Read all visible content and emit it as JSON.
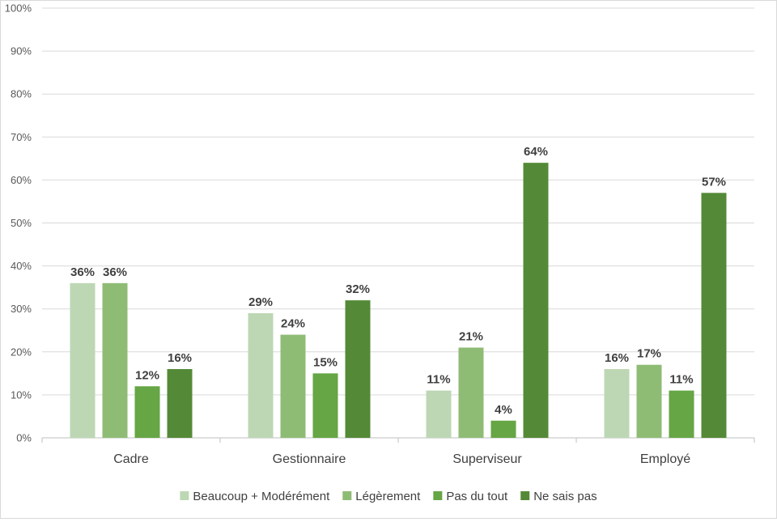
{
  "chart_data": {
    "type": "bar",
    "categories": [
      "Cadre",
      "Gestionnaire",
      "Superviseur",
      "Employé"
    ],
    "series": [
      {
        "name": "Beaucoup + Modérément",
        "color": "#bdd7b4",
        "values": [
          36,
          29,
          11,
          16
        ]
      },
      {
        "name": "Légèrement",
        "color": "#8fbc75",
        "values": [
          36,
          24,
          21,
          17
        ]
      },
      {
        "name": "Pas du tout",
        "color": "#66a645",
        "values": [
          12,
          15,
          4,
          11
        ]
      },
      {
        "name": "Ne sais pas",
        "color": "#548a37",
        "values": [
          16,
          32,
          64,
          57
        ]
      }
    ],
    "ylim": [
      0,
      100
    ],
    "yticks": [
      "0%",
      "10%",
      "20%",
      "30%",
      "40%",
      "50%",
      "60%",
      "70%",
      "80%",
      "90%",
      "100%"
    ],
    "value_suffix": "%",
    "grid": true,
    "legend_position": "bottom",
    "title": "",
    "xlabel": "",
    "ylabel": ""
  }
}
